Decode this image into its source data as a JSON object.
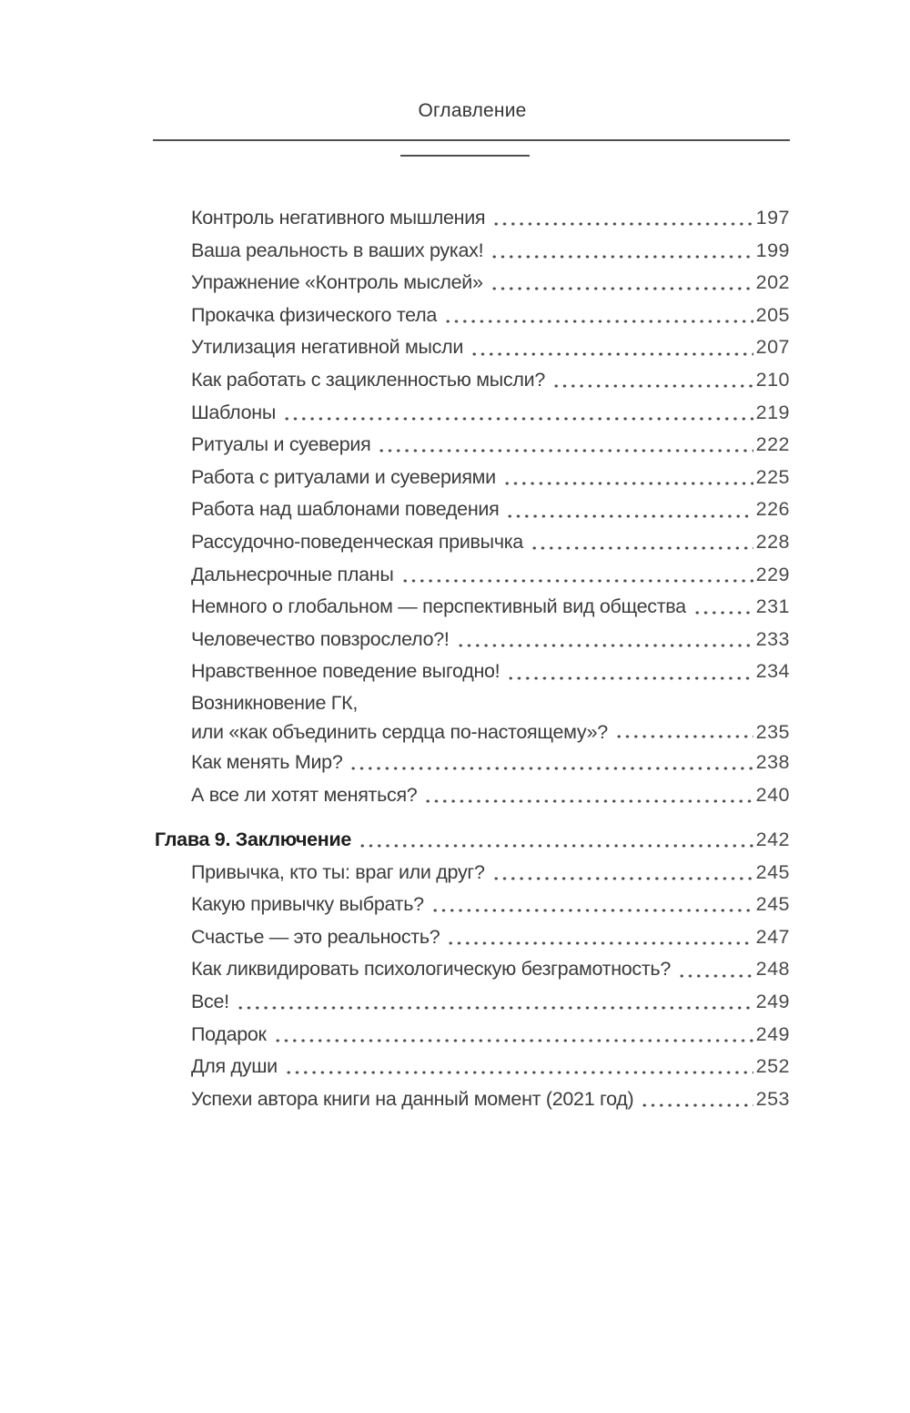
{
  "header": {
    "title": "Оглавление"
  },
  "colors": {
    "text": "#3c3c3c",
    "chapter_text": "#1d1d1d",
    "rule": "#4f4f4f",
    "page_background": "#ffffff"
  },
  "toc": {
    "entries": [
      {
        "title": "Контроль негативного мышления",
        "page": "197"
      },
      {
        "title": "Ваша реальность в ваших руках!",
        "page": "199"
      },
      {
        "title": "Упражнение «Контроль мыслей»",
        "page": "202"
      },
      {
        "title": "Прокачка физического тела",
        "page": "205"
      },
      {
        "title": "Утилизация негативной мысли",
        "page": "207"
      },
      {
        "title": "Как работать с зацикленностью мысли?",
        "page": "210"
      },
      {
        "title": "Шаблоны",
        "page": "219"
      },
      {
        "title": "Ритуалы и суеверия",
        "page": "222"
      },
      {
        "title": "Работа с ритуалами и суевериями",
        "page": "225"
      },
      {
        "title": "Работа над шаблонами поведения",
        "page": "226"
      },
      {
        "title": "Рассудочно-поведенческая привычка",
        "page": "228"
      },
      {
        "title": "Дальнесрочные планы",
        "page": "229"
      },
      {
        "title": "Немного о глобальном — перспективный вид общества",
        "page": "231"
      },
      {
        "title": "Человечество повзрослело?!",
        "page": "233"
      },
      {
        "title": "Нравственное поведение выгодно!",
        "page": "234"
      },
      {
        "pretitle": "Возникновение ГК,",
        "title": "или «как объединить сердца по-настоящему»?",
        "page": "235"
      },
      {
        "title": "Как менять Мир?",
        "page": "238"
      },
      {
        "title": "А все ли хотят меняться?",
        "page": "240"
      },
      {
        "title": "Глава 9. Заключение",
        "page": "242"
      },
      {
        "title": "Привычка, кто ты: враг или друг?",
        "page": "245"
      },
      {
        "title": "Какую привычку выбрать?",
        "page": "245"
      },
      {
        "title": "Счастье — это реальность?",
        "page": "247"
      },
      {
        "title": "Как ликвидировать психологическую безграмотность?",
        "page": "248"
      },
      {
        "title": "Все!",
        "page": "249"
      },
      {
        "title": "Подарок",
        "page": "249"
      },
      {
        "title": "Для души",
        "page": "252"
      },
      {
        "title": "Успехи автора книги на данный момент (2021 год)",
        "page": "253"
      }
    ]
  }
}
